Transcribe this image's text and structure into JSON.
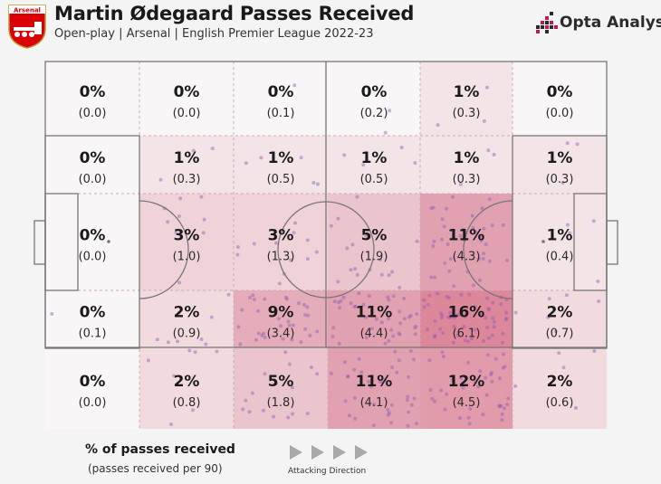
{
  "header": {
    "title": "Martin Ødegaard Passes Received",
    "subtitle": "Open-play | Arsenal | English Premier League 2022-23",
    "crest_text": "Arsenal",
    "brand": "Opta Analyst"
  },
  "colors": {
    "background": "#f5f4f4",
    "heat_max": "#d8798f",
    "dots": "#8e5bb5",
    "crest_red": "#db0007",
    "brand_accent": "#c2185b"
  },
  "legend": {
    "title": "% of passes received",
    "subtitle": "(passes received per 90)",
    "direction": "Attacking Direction"
  },
  "chart_data": {
    "type": "heatmap",
    "title": "Martin Ødegaard Passes Received",
    "description": "Pitch divided into 6 columns (attacking left to right) x 5 rows; each zone shows % of passes received and passes received per 90",
    "rows": [
      [
        {
          "pct": "0%",
          "p90": "(0.0)"
        },
        {
          "pct": "0%",
          "p90": "(0.0)"
        },
        {
          "pct": "0%",
          "p90": "(0.1)"
        },
        {
          "pct": "0%",
          "p90": "(0.2)"
        },
        {
          "pct": "1%",
          "p90": "(0.3)"
        },
        {
          "pct": "0%",
          "p90": "(0.0)"
        }
      ],
      [
        {
          "pct": "0%",
          "p90": "(0.0)"
        },
        {
          "pct": "1%",
          "p90": "(0.3)"
        },
        {
          "pct": "1%",
          "p90": "(0.5)"
        },
        {
          "pct": "1%",
          "p90": "(0.5)"
        },
        {
          "pct": "1%",
          "p90": "(0.3)"
        },
        {
          "pct": "1%",
          "p90": "(0.3)"
        }
      ],
      [
        {
          "pct": "0%",
          "p90": "(0.0)"
        },
        {
          "pct": "3%",
          "p90": "(1.0)"
        },
        {
          "pct": "3%",
          "p90": "(1.3)"
        },
        {
          "pct": "5%",
          "p90": "(1.9)"
        },
        {
          "pct": "11%",
          "p90": "(4.3)"
        },
        {
          "pct": "1%",
          "p90": "(0.4)"
        }
      ],
      [
        {
          "pct": "0%",
          "p90": "(0.1)"
        },
        {
          "pct": "2%",
          "p90": "(0.9)"
        },
        {
          "pct": "9%",
          "p90": "(3.4)"
        },
        {
          "pct": "11%",
          "p90": "(4.4)"
        },
        {
          "pct": "16%",
          "p90": "(6.1)"
        },
        {
          "pct": "2%",
          "p90": "(0.7)"
        }
      ],
      [
        {
          "pct": "0%",
          "p90": "(0.0)"
        },
        {
          "pct": "2%",
          "p90": "(0.8)"
        },
        {
          "pct": "5%",
          "p90": "(1.8)"
        },
        {
          "pct": "11%",
          "p90": "(4.1)"
        },
        {
          "pct": "12%",
          "p90": "(4.5)"
        },
        {
          "pct": "2%",
          "p90": "(0.6)"
        }
      ]
    ],
    "attacking_direction": "left-to-right"
  }
}
